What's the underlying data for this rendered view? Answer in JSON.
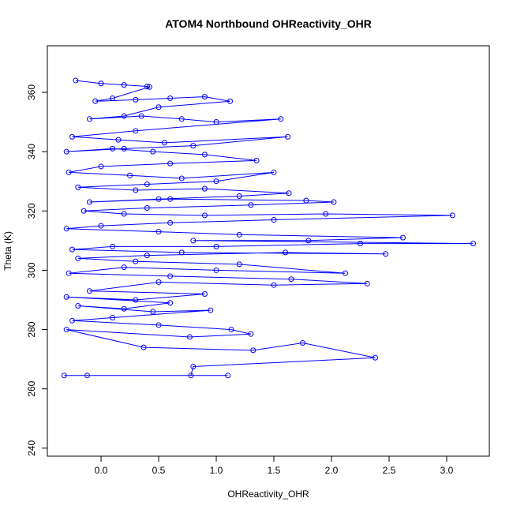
{
  "chart_data": {
    "type": "line",
    "title": "ATOM4 Northbound OHReactivity_OHR",
    "x_label": "OHReactivity_OHR",
    "y_label": "Theta (K)",
    "x": [
      -0.22,
      0.0,
      0.2,
      0.4,
      0.42,
      0.1,
      -0.05,
      0.3,
      0.6,
      0.9,
      1.12,
      0.5,
      0.2,
      -0.1,
      0.35,
      0.7,
      1.0,
      1.56,
      0.3,
      -0.25,
      0.15,
      0.55,
      1.62,
      0.8,
      0.2,
      -0.3,
      0.1,
      0.45,
      0.9,
      1.35,
      0.6,
      0.0,
      -0.28,
      0.25,
      0.7,
      1.5,
      1.0,
      0.4,
      -0.2,
      0.3,
      0.9,
      1.63,
      1.2,
      0.5,
      -0.1,
      0.6,
      1.78,
      2.02,
      1.3,
      0.4,
      -0.15,
      0.2,
      0.9,
      1.95,
      3.05,
      1.5,
      0.6,
      0.0,
      -0.3,
      0.5,
      1.2,
      2.62,
      1.8,
      0.8,
      3.23,
      2.25,
      1.0,
      0.1,
      -0.25,
      0.7,
      2.47,
      1.6,
      0.4,
      -0.2,
      0.3,
      1.2,
      2.12,
      1.0,
      0.2,
      -0.28,
      0.6,
      1.65,
      2.31,
      1.5,
      0.5,
      -0.1,
      0.9,
      0.3,
      -0.3,
      0.6,
      0.2,
      -0.2,
      0.45,
      0.95,
      0.1,
      -0.25,
      0.5,
      1.13,
      1.3,
      0.77,
      -0.3,
      0.37,
      1.32,
      1.75,
      2.38,
      0.8,
      0.78,
      1.1,
      -0.12,
      -0.32
    ],
    "series": [
      {
        "name": "OHReactivity_OHR",
        "color": "#0000ff",
        "values": [
          364,
          363,
          362.5,
          362,
          361.8,
          358,
          357,
          357.5,
          358,
          358.5,
          357,
          355,
          352,
          351,
          352,
          351,
          350,
          351,
          347,
          345,
          344,
          343,
          345,
          342,
          341,
          340,
          341,
          340,
          339,
          337,
          336,
          335,
          333,
          332,
          331,
          333,
          330,
          329,
          328,
          327,
          327.5,
          326,
          325,
          324,
          323,
          324,
          323.5,
          323,
          322,
          321,
          320,
          319,
          318.5,
          319,
          318.5,
          317,
          316,
          315,
          314,
          313,
          312,
          311,
          310,
          310,
          309,
          309,
          308,
          308,
          307,
          306,
          305.5,
          306,
          305,
          304,
          303,
          302,
          299,
          300,
          301,
          299,
          298,
          297,
          295.5,
          295,
          296,
          293,
          292,
          290,
          291,
          289,
          287,
          288,
          286,
          286.5,
          284,
          283,
          281.5,
          280,
          278.5,
          277.5,
          280,
          274,
          273,
          275.5,
          270.5,
          267.5,
          264.5,
          264.5,
          264.5,
          264.5
        ]
      }
    ],
    "xlim": [
      -0.466,
      3.37
    ],
    "ylim": [
      237.3,
      375.7
    ],
    "xticks": [
      {
        "value": 0,
        "label": "0.0"
      },
      {
        "value": 0.5,
        "label": "0.5"
      },
      {
        "value": 1,
        "label": "1.0"
      },
      {
        "value": 1.5,
        "label": "1.5"
      },
      {
        "value": 2,
        "label": "2.0"
      },
      {
        "value": 2.5,
        "label": "2.5"
      },
      {
        "value": 3,
        "label": "3.0"
      }
    ],
    "yticks": [
      240,
      260,
      280,
      300,
      320,
      340,
      360
    ]
  }
}
